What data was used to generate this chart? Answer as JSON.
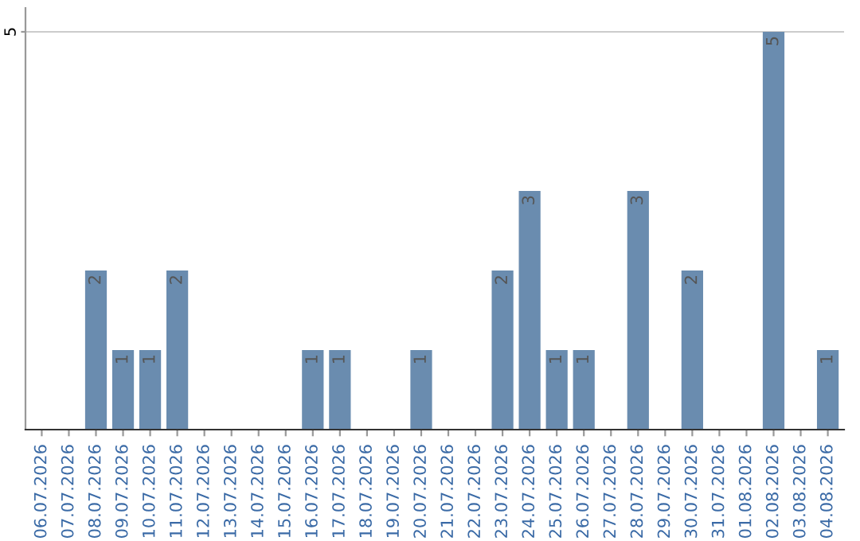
{
  "chart_data": {
    "type": "bar",
    "categories": [
      "06.07.2026",
      "07.07.2026",
      "08.07.2026",
      "09.07.2026",
      "10.07.2026",
      "11.07.2026",
      "12.07.2026",
      "13.07.2026",
      "14.07.2026",
      "15.07.2026",
      "16.07.2026",
      "17.07.2026",
      "18.07.2026",
      "19.07.2026",
      "20.07.2026",
      "21.07.2026",
      "22.07.2026",
      "23.07.2026",
      "24.07.2026",
      "25.07.2026",
      "26.07.2026",
      "27.07.2026",
      "28.07.2026",
      "29.07.2026",
      "30.07.2026",
      "31.07.2026",
      "01.08.2026",
      "02.08.2026",
      "03.08.2026",
      "04.08.2026"
    ],
    "values": [
      0,
      0,
      2,
      1,
      1,
      2,
      0,
      0,
      0,
      0,
      1,
      1,
      0,
      0,
      1,
      0,
      0,
      2,
      3,
      1,
      1,
      0,
      3,
      0,
      2,
      0,
      0,
      5,
      0,
      1
    ],
    "value_labels": [
      null,
      null,
      "2",
      "1",
      "1",
      "2",
      null,
      null,
      null,
      null,
      "1",
      "1",
      null,
      null,
      "1",
      null,
      null,
      "2",
      "3",
      "1",
      "1",
      null,
      "3",
      null,
      "2",
      null,
      null,
      "5",
      null,
      "1"
    ],
    "color": "#6a8caf",
    "ylim": [
      0,
      5.3
    ],
    "yticks": [
      5
    ],
    "grid": "y"
  }
}
